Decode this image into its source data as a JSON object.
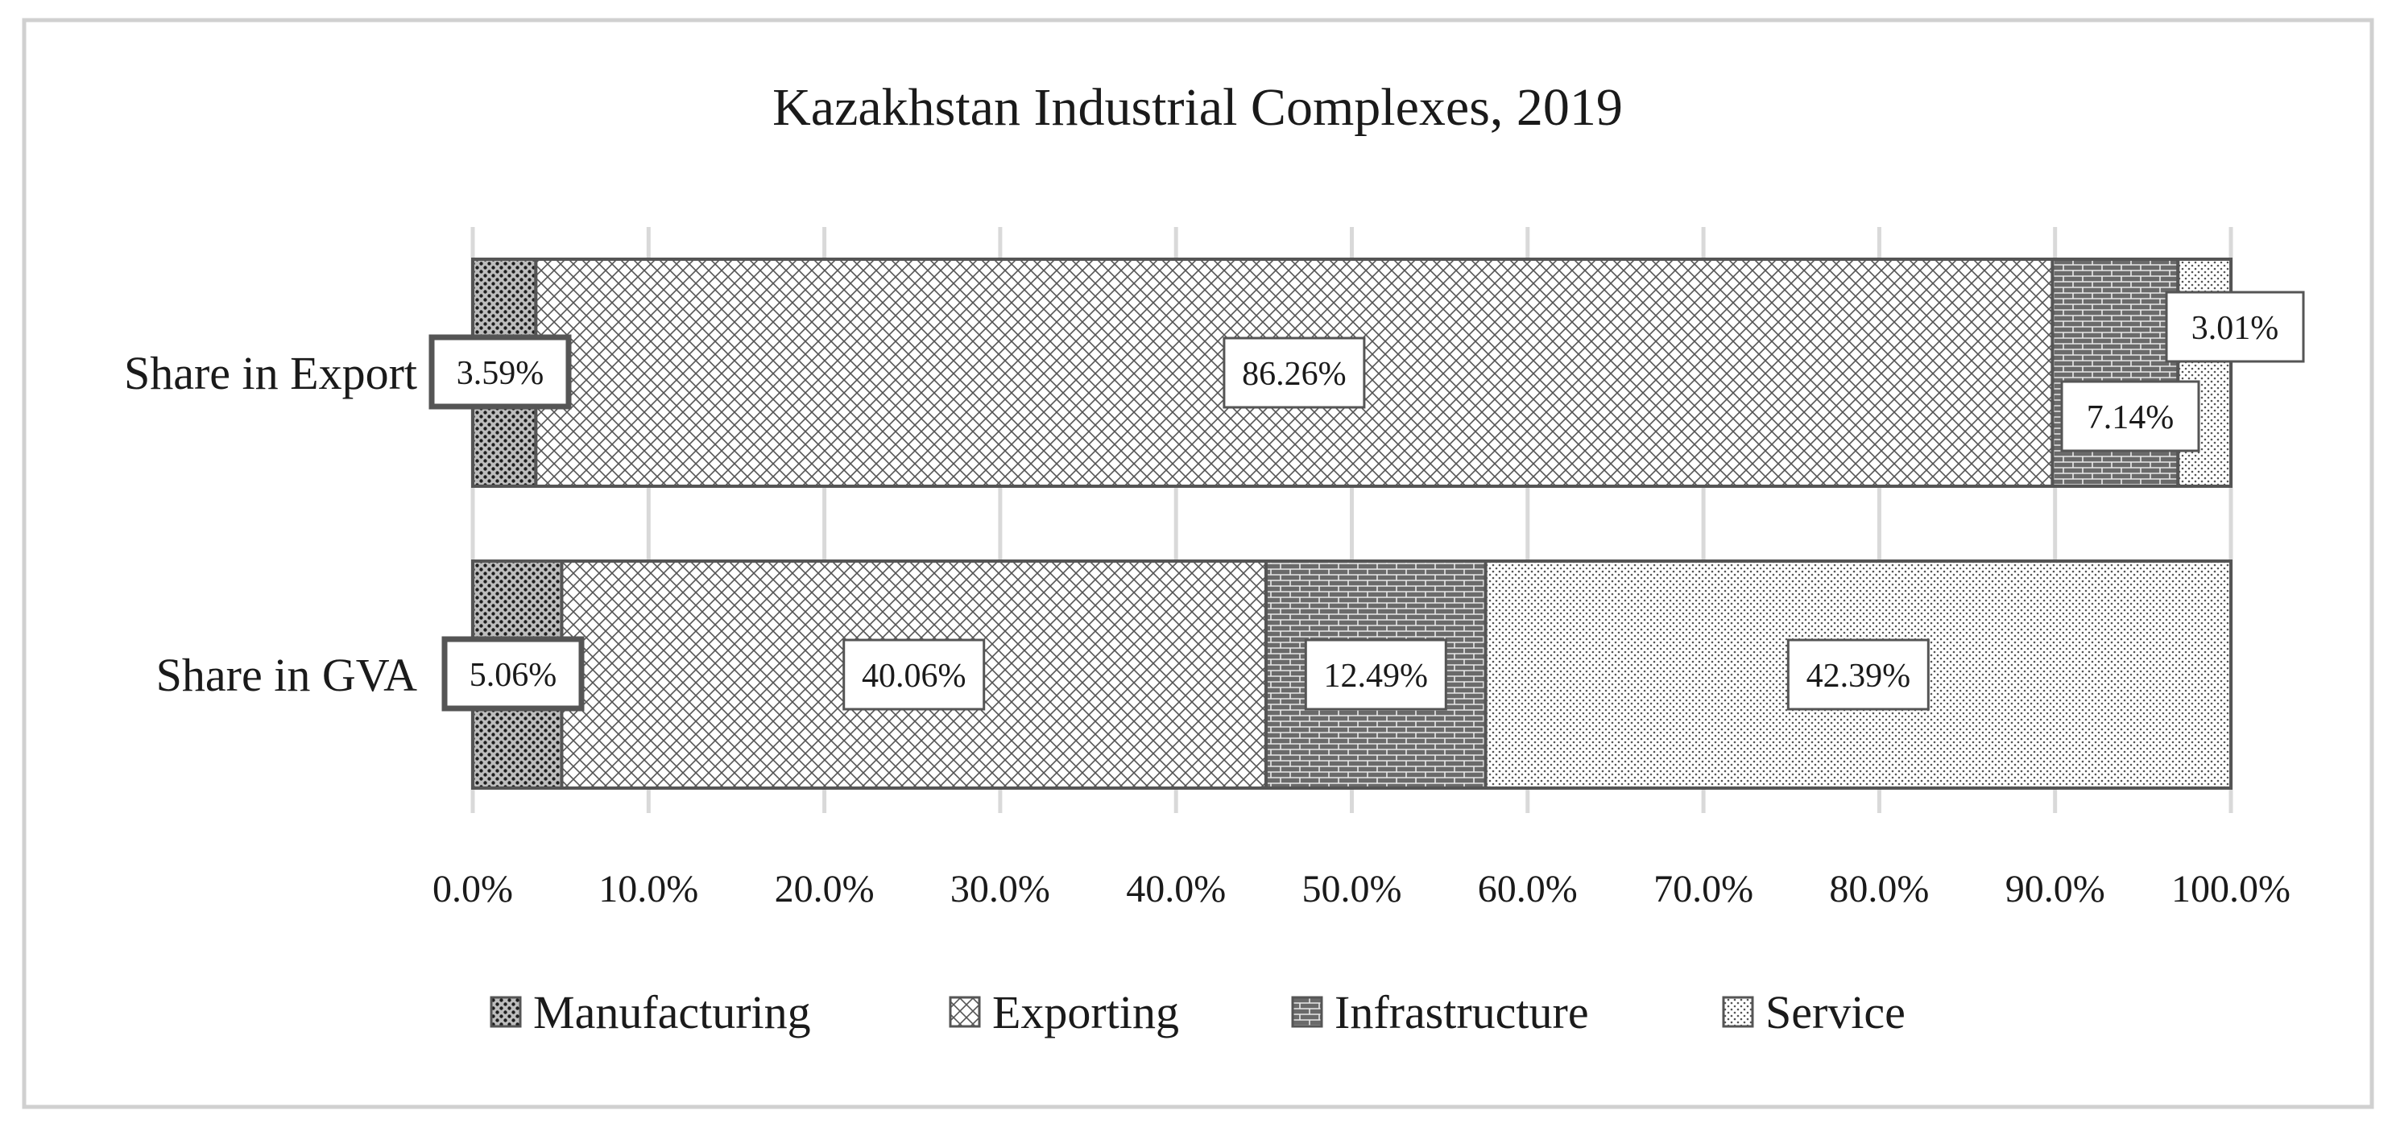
{
  "chart_data": {
    "type": "bar",
    "orientation": "horizontal",
    "stacked": true,
    "title": "Kazakhstan Industrial Complexes, 2019",
    "xlabel": "",
    "ylabel": "",
    "xlim": [
      0,
      100
    ],
    "tick_values": [
      0,
      10,
      20,
      30,
      40,
      50,
      60,
      70,
      80,
      90,
      100
    ],
    "tick_labels": [
      "0.0%",
      "10.0%",
      "20.0%",
      "30.0%",
      "40.0%",
      "50.0%",
      "60.0%",
      "70.0%",
      "80.0%",
      "90.0%",
      "100.0%"
    ],
    "grid": true,
    "legend_position": "bottom",
    "categories": [
      "Share in Export",
      "Share in GVA"
    ],
    "series": [
      {
        "name": "Manufacturing",
        "values": [
          3.59,
          5.06
        ],
        "labels": [
          "3.59%",
          "5.06%"
        ],
        "pattern": "dots-dense"
      },
      {
        "name": "Exporting",
        "values": [
          86.26,
          40.06
        ],
        "labels": [
          "86.26%",
          "40.06%"
        ],
        "pattern": "crosshatch"
      },
      {
        "name": "Infrastructure",
        "values": [
          7.14,
          12.49
        ],
        "labels": [
          "7.14%",
          "12.49%"
        ],
        "pattern": "brick"
      },
      {
        "name": "Service",
        "values": [
          3.01,
          42.39
        ],
        "labels": [
          "3.01%",
          "42.39%"
        ],
        "pattern": "dots-fine"
      }
    ]
  }
}
